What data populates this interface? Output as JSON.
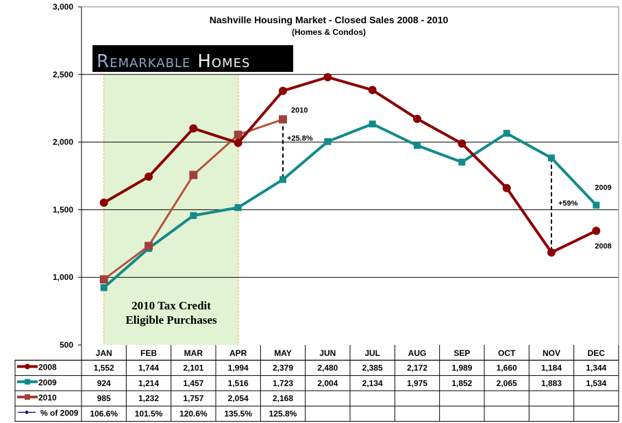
{
  "chart_data": {
    "type": "line",
    "title": "Nashville Housing Market - Closed Sales 2008 - 2010",
    "subtitle": "(Homes & Condos)",
    "xlabel": "",
    "ylabel": "",
    "categories": [
      "JAN",
      "FEB",
      "MAR",
      "APR",
      "MAY",
      "JUN",
      "JUL",
      "AUG",
      "SEP",
      "OCT",
      "NOV",
      "DEC"
    ],
    "ylim": [
      500,
      3000
    ],
    "yticks": [
      500,
      1000,
      1500,
      2000,
      2500,
      3000
    ],
    "ytick_labels": [
      "500",
      "1,000",
      "1,500",
      "2,000",
      "2,500",
      "3,000"
    ],
    "grid": true,
    "legend_placement": "data-table-left",
    "series": [
      {
        "name": "2008",
        "color": "#8B0000",
        "marker": "circle",
        "values": [
          1552,
          1744,
          2101,
          1994,
          2379,
          2480,
          2385,
          2172,
          1989,
          1660,
          1184,
          1344
        ],
        "labels": [
          "1,552",
          "1,744",
          "2,101",
          "1,994",
          "2,379",
          "2,480",
          "2,385",
          "2,172",
          "1,989",
          "1,660",
          "1,184",
          "1,344"
        ]
      },
      {
        "name": "2009",
        "color": "#138A8A",
        "marker": "square",
        "values": [
          924,
          1214,
          1457,
          1516,
          1723,
          2004,
          2134,
          1975,
          1852,
          2065,
          1883,
          1534
        ],
        "labels": [
          "924",
          "1,214",
          "1,457",
          "1,516",
          "1,723",
          "2,004",
          "2,134",
          "1,975",
          "1,852",
          "2,065",
          "1,883",
          "1,534"
        ]
      },
      {
        "name": "2010",
        "color": "#A0413C",
        "marker": "square",
        "values": [
          985,
          1232,
          1757,
          2054,
          2168,
          null,
          null,
          null,
          null,
          null,
          null,
          null
        ],
        "labels": [
          "985",
          "1,232",
          "1,757",
          "2,054",
          "2,168",
          "",
          "",
          "",
          "",
          "",
          "",
          ""
        ]
      },
      {
        "name": "% of 2009",
        "color": "#000080",
        "marker": "diamond",
        "plotted": false,
        "values": [
          106.6,
          101.5,
          120.6,
          135.5,
          125.8,
          null,
          null,
          null,
          null,
          null,
          null,
          null
        ],
        "labels": [
          "106.6%",
          "101.5%",
          "120.6%",
          "135.5%",
          "125.8%",
          "",
          "",
          "",
          "",
          "",
          "",
          ""
        ]
      }
    ],
    "highlight_band": {
      "from": "JAN",
      "to": "APR",
      "label_line1": "2010 Tax Credit",
      "label_line2": "Eligible Purchases",
      "color": "#E2F3D4",
      "border_color": "#F5A623"
    },
    "annotations": [
      {
        "text": "2010",
        "near": "2010 @ MAY"
      },
      {
        "text": "+25.8%",
        "between": [
          "2010 @ MAY",
          "2009 @ MAY"
        ]
      },
      {
        "text": "2009",
        "near": "2009 @ DEC"
      },
      {
        "text": "+59%",
        "between": [
          "2009 @ NOV",
          "2008 @ NOV"
        ]
      },
      {
        "text": "2008",
        "near": "2008 @ DEC"
      }
    ]
  },
  "logo": {
    "text_part1": "Remarkable",
    "text_part2": "Homes"
  }
}
